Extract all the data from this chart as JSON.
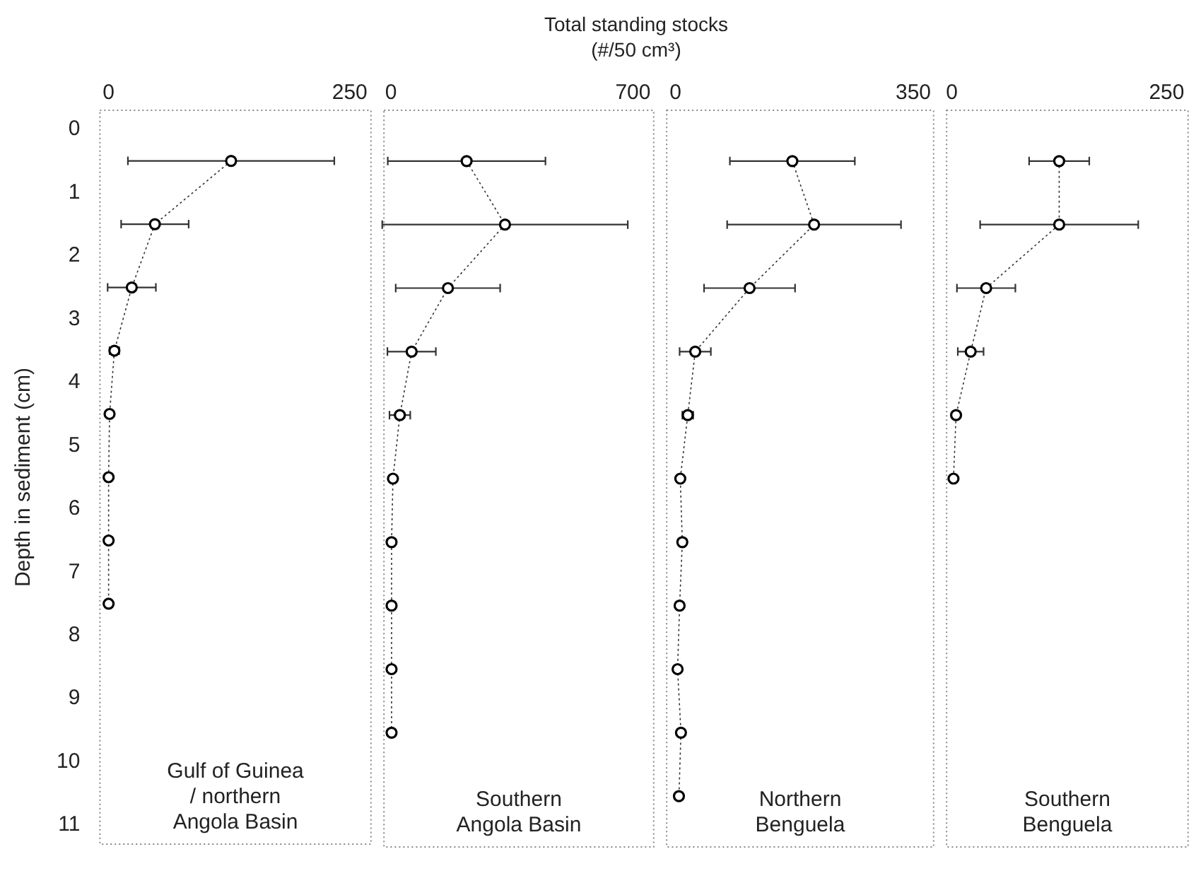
{
  "chart_data": [
    {
      "type": "line",
      "ylabel": "Depth in sediment (cm)",
      "annotations": [
        "Gulf of Guinea\n/ northern\nAngola Basin"
      ],
      "color": "#333333",
      "marker": "circle",
      "line_style": "dotted",
      "x": [
        127,
        48,
        24,
        6,
        1,
        0,
        0,
        0
      ],
      "values": [
        0.5,
        1.5,
        2.5,
        3.5,
        4.5,
        5.5,
        6.5,
        7.5
      ],
      "xerrors": [
        107,
        35,
        25,
        5,
        null,
        null,
        null,
        null
      ],
      "xlim": [
        -9,
        272
      ],
      "xticks": [
        0,
        250
      ],
      "ylim": [
        11.3,
        -0.3
      ],
      "yticks": [
        0,
        1,
        2,
        3,
        4,
        5,
        6,
        7,
        8,
        9,
        10,
        11
      ],
      "grid": false
    },
    {
      "type": "line",
      "title": "Total standing stocks (#/50 cm³)",
      "annotations": [
        "Southern\nAngola Basin"
      ],
      "color": "#333333",
      "marker": "circle",
      "line_style": "dotted",
      "x": [
        219,
        330,
        165,
        60,
        26,
        6,
        2,
        2,
        2,
        2
      ],
      "values": [
        0.5,
        1.5,
        2.5,
        3.5,
        4.5,
        5.5,
        6.5,
        7.5,
        8.5,
        9.5
      ],
      "xerrors": [
        228,
        355,
        151,
        70,
        30,
        null,
        null,
        null,
        null,
        null
      ],
      "xlim": [
        -20,
        760
      ],
      "xticks": [
        0,
        700
      ],
      "ylim": [
        11.3,
        -0.3
      ],
      "tick_labels": "x",
      "grid": false
    },
    {
      "type": "line",
      "annotations": [
        "Northern\nBenguela"
      ],
      "color": "#333333",
      "marker": "circle",
      "line_style": "dotted",
      "x": [
        172,
        204,
        109,
        29,
        18,
        7,
        10,
        6,
        3,
        8,
        5
      ],
      "values": [
        0.5,
        1.5,
        2.5,
        3.5,
        4.5,
        5.5,
        6.5,
        7.5,
        8.5,
        9.5,
        10.5
      ],
      "xerrors": [
        92,
        128,
        67,
        23,
        8,
        null,
        null,
        null,
        null,
        null,
        null
      ],
      "xlim": [
        -13,
        380
      ],
      "xticks": [
        0,
        350
      ],
      "ylim": [
        11.3,
        -0.3
      ],
      "tick_labels": "x",
      "grid": false
    },
    {
      "type": "line",
      "annotations": [
        "Southern\nBenguela"
      ],
      "color": "#333333",
      "marker": "circle",
      "line_style": "dotted",
      "x": [
        125,
        125,
        40,
        22,
        5,
        2
      ],
      "values": [
        0.5,
        1.5,
        2.5,
        3.5,
        4.5,
        5.5
      ],
      "xerrors": [
        35,
        92,
        34,
        15,
        null,
        null
      ],
      "xlim": [
        -6,
        275
      ],
      "xticks": [
        0,
        250
      ],
      "ylim": [
        11.3,
        -0.3
      ],
      "tick_labels": "x",
      "grid": false
    }
  ]
}
